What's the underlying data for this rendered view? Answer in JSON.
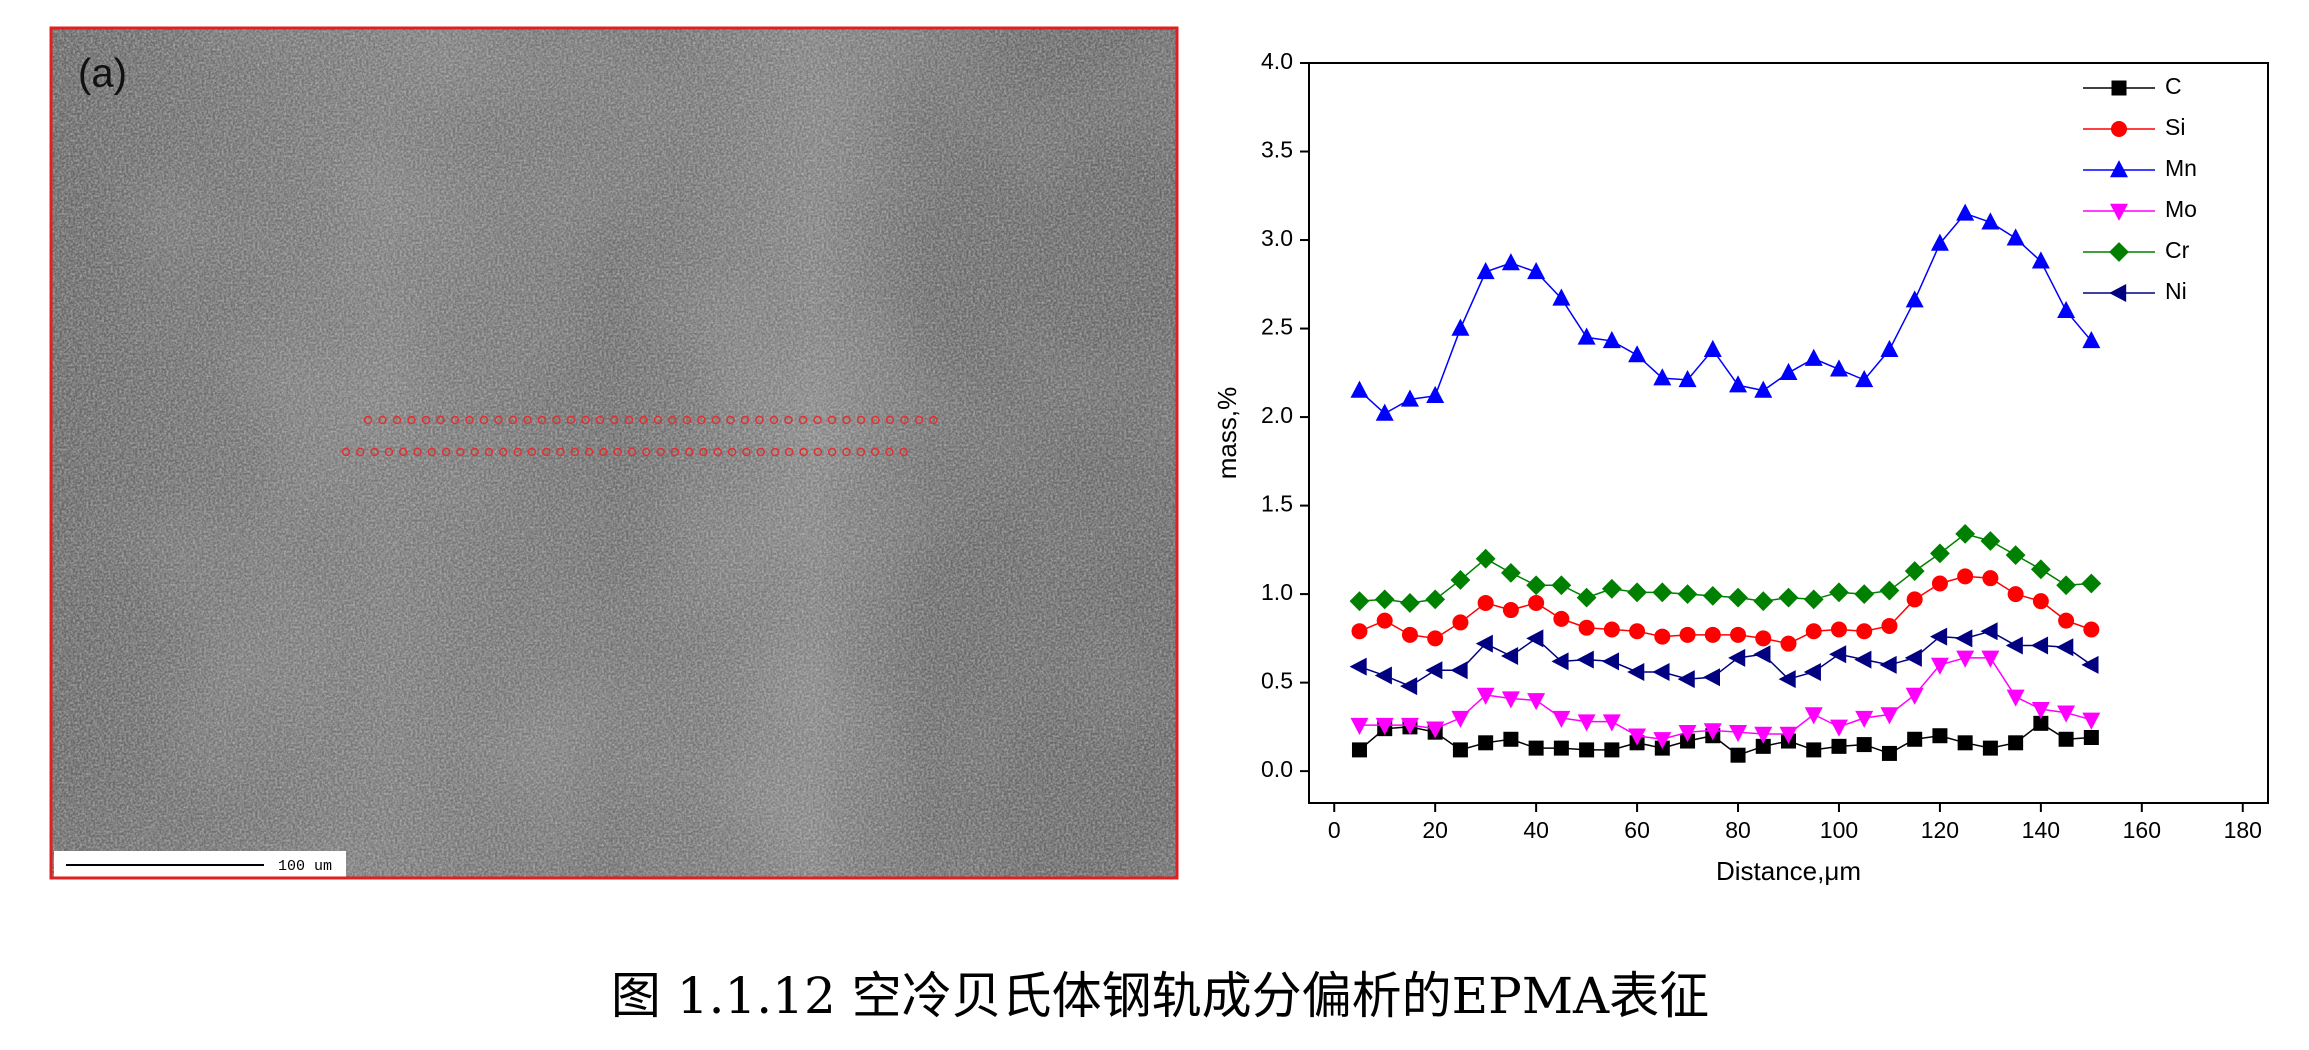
{
  "figure_label": "(a)",
  "scale_bar": "100 um",
  "caption": "图 1.1.12 空冷贝氏体钢轨成分偏析的EPMA表征",
  "chart_data": {
    "type": "line",
    "xlabel": "Distance,μm",
    "ylabel": "mass,%",
    "x": [
      5,
      10,
      15,
      20,
      25,
      30,
      35,
      40,
      45,
      50,
      55,
      60,
      65,
      70,
      75,
      80,
      85,
      90,
      95,
      100,
      105,
      110,
      115,
      120,
      125,
      130,
      135,
      140,
      145,
      150
    ],
    "xlim": [
      -5,
      185
    ],
    "xticks": [
      0,
      20,
      40,
      60,
      80,
      100,
      120,
      140,
      160,
      180
    ],
    "ylim": [
      -0.18,
      4.0
    ],
    "yticks": [
      {
        "value": 0,
        "label": "0.0"
      },
      0.5,
      {
        "value": 1,
        "label": "1.0"
      },
      1.5,
      {
        "value": 2,
        "label": "2.0"
      },
      2.5,
      {
        "value": 3,
        "label": "3.0"
      },
      3.5,
      {
        "value": 4,
        "label": "4.0"
      }
    ],
    "legend": "upper right",
    "series": [
      {
        "name": "C",
        "color": "#000000",
        "marker": "square",
        "values": [
          0.12,
          0.24,
          0.25,
          0.22,
          0.12,
          0.16,
          0.18,
          0.13,
          0.13,
          0.12,
          0.12,
          0.16,
          0.13,
          0.17,
          0.2,
          0.09,
          0.14,
          0.17,
          0.12,
          0.14,
          0.15,
          0.1,
          0.18,
          0.2,
          0.16,
          0.13,
          0.16,
          0.27,
          0.18,
          0.19
        ]
      },
      {
        "name": "Si",
        "color": "#ff0000",
        "marker": "circle",
        "values": [
          0.79,
          0.85,
          0.77,
          0.75,
          0.84,
          0.95,
          0.91,
          0.95,
          0.86,
          0.81,
          0.8,
          0.79,
          0.76,
          0.77,
          0.77,
          0.77,
          0.75,
          0.72,
          0.79,
          0.8,
          0.79,
          0.82,
          0.97,
          1.06,
          1.1,
          1.09,
          1.0,
          0.96,
          0.85,
          0.8
        ]
      },
      {
        "name": "Mn",
        "color": "#0000ff",
        "marker": "triangle-up",
        "values": [
          2.15,
          2.02,
          2.1,
          2.12,
          2.5,
          2.82,
          2.87,
          2.82,
          2.67,
          2.45,
          2.43,
          2.35,
          2.22,
          2.21,
          2.38,
          2.18,
          2.15,
          2.25,
          2.33,
          2.27,
          2.21,
          2.38,
          2.66,
          2.98,
          3.15,
          3.1,
          3.01,
          2.88,
          2.6,
          2.43
        ]
      },
      {
        "name": "Mo",
        "color": "#ff00ff",
        "marker": "triangle-down",
        "values": [
          0.26,
          0.26,
          0.26,
          0.24,
          0.3,
          0.43,
          0.41,
          0.4,
          0.3,
          0.28,
          0.28,
          0.2,
          0.18,
          0.22,
          0.23,
          0.22,
          0.21,
          0.21,
          0.32,
          0.25,
          0.3,
          0.32,
          0.43,
          0.6,
          0.64,
          0.64,
          0.42,
          0.35,
          0.33,
          0.29
        ]
      },
      {
        "name": "Cr",
        "color": "#008000",
        "marker": "diamond",
        "values": [
          0.96,
          0.97,
          0.95,
          0.97,
          1.08,
          1.2,
          1.12,
          1.05,
          1.05,
          0.98,
          1.03,
          1.01,
          1.01,
          1.0,
          0.99,
          0.98,
          0.96,
          0.98,
          0.97,
          1.01,
          1.0,
          1.02,
          1.13,
          1.23,
          1.34,
          1.3,
          1.22,
          1.14,
          1.05,
          1.06
        ]
      },
      {
        "name": "Ni",
        "color": "#000080",
        "marker": "triangle-left",
        "values": [
          0.59,
          0.54,
          0.48,
          0.57,
          0.57,
          0.72,
          0.65,
          0.75,
          0.62,
          0.63,
          0.62,
          0.56,
          0.56,
          0.52,
          0.53,
          0.64,
          0.66,
          0.52,
          0.56,
          0.66,
          0.63,
          0.6,
          0.64,
          0.76,
          0.75,
          0.79,
          0.71,
          0.71,
          0.7,
          0.6
        ]
      }
    ]
  }
}
